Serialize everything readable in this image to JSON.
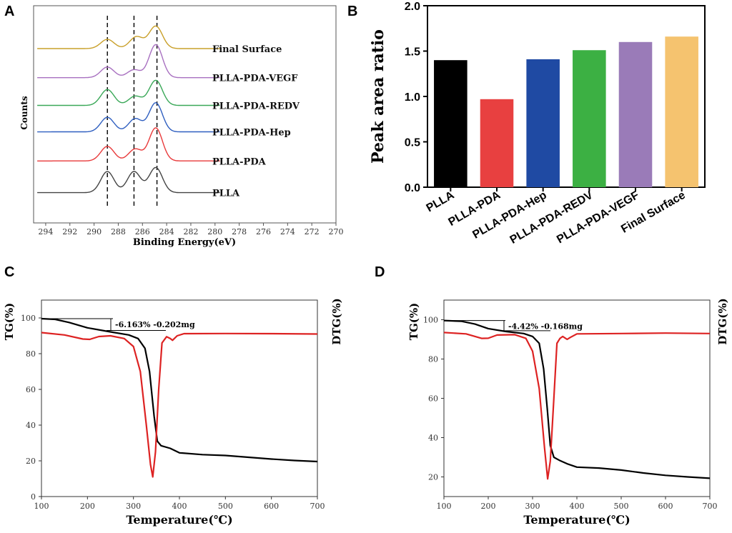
{
  "chart_data": [
    {
      "panel": "A",
      "type": "line",
      "xlabel": "Binding Energy(eV)",
      "ylabel": "Counts",
      "xlim": [
        295,
        270
      ],
      "xticks": [
        294,
        292,
        290,
        288,
        286,
        284,
        282,
        280,
        278,
        276,
        274,
        272,
        270
      ],
      "reference_lines": [
        288.9,
        286.7,
        284.8
      ],
      "series": [
        {
          "name": "Final Surface",
          "color": "#c9a02a",
          "offset": 6.0,
          "peaks": [
            [
              288.9,
              0.35
            ],
            [
              286.5,
              0.45
            ],
            [
              284.9,
              0.85
            ]
          ]
        },
        {
          "name": "PLLA-PDA-VEGF",
          "color": "#a870c0",
          "offset": 4.9,
          "peaks": [
            [
              288.9,
              0.4
            ],
            [
              286.7,
              0.3
            ],
            [
              284.9,
              1.25
            ]
          ]
        },
        {
          "name": "PLLA-PDA-REDV",
          "color": "#3aa858",
          "offset": 3.85,
          "peaks": [
            [
              288.9,
              0.6
            ],
            [
              286.6,
              0.35
            ],
            [
              284.9,
              0.95
            ]
          ]
        },
        {
          "name": "PLLA-PDA-Hep",
          "color": "#2f5fc0",
          "offset": 2.85,
          "peaks": [
            [
              288.9,
              0.55
            ],
            [
              286.6,
              0.5
            ],
            [
              284.9,
              1.1
            ]
          ]
        },
        {
          "name": "PLLA-PDA",
          "color": "#e8393a",
          "offset": 1.75,
          "peaks": [
            [
              288.9,
              0.55
            ],
            [
              286.6,
              0.45
            ],
            [
              284.9,
              1.25
            ]
          ]
        },
        {
          "name": "PLLA",
          "color": "#444444",
          "offset": 0.55,
          "peaks": [
            [
              288.9,
              0.8
            ],
            [
              286.7,
              0.8
            ],
            [
              284.9,
              0.95
            ]
          ]
        }
      ]
    },
    {
      "panel": "B",
      "type": "bar",
      "ylabel": "Peak area ratio",
      "ylim": [
        0.0,
        2.0
      ],
      "yticks": [
        "0.0",
        "0.5",
        "1.0",
        "1.5",
        "2.0"
      ],
      "categories": [
        "PLLA",
        "PLLA-PDA",
        "PLLA-PDA-Hep",
        "PLLA-PDA-REDV",
        "PLLA-PDA-VEGF",
        "Final Surface"
      ],
      "values": [
        1.4,
        0.97,
        1.41,
        1.51,
        1.6,
        1.66
      ],
      "colors": [
        "#000000",
        "#e84040",
        "#1f4aa3",
        "#3cb043",
        "#9a7bb8",
        "#f5c36f"
      ]
    },
    {
      "panel": "C",
      "type": "line",
      "xlabel": "Temperature(℃)",
      "ylabel": "TG(%)",
      "y2label": "DTG(%)",
      "xlim": [
        100,
        700
      ],
      "ylim": [
        0,
        110
      ],
      "xticks": [
        100,
        200,
        300,
        400,
        500,
        600,
        700
      ],
      "yticks": [
        0,
        20,
        40,
        60,
        80,
        100
      ],
      "annotation": "-6.163% -0.202mg",
      "series": [
        {
          "name": "TG",
          "color": "#000000",
          "points": [
            [
              100,
              99.6
            ],
            [
              130,
              99.2
            ],
            [
              160,
              97.5
            ],
            [
              200,
              94.5
            ],
            [
              250,
              92.2
            ],
            [
              290,
              90.5
            ],
            [
              310,
              88.5
            ],
            [
              325,
              83
            ],
            [
              335,
              70
            ],
            [
              345,
              45
            ],
            [
              352,
              31
            ],
            [
              360,
              28.5
            ],
            [
              380,
              27
            ],
            [
              400,
              24.5
            ],
            [
              450,
              23.5
            ],
            [
              500,
              23
            ],
            [
              550,
              22
            ],
            [
              600,
              21
            ],
            [
              650,
              20.2
            ],
            [
              700,
              19.6
            ]
          ]
        },
        {
          "name": "DTG",
          "color": "#dd2222",
          "points": [
            [
              100,
              91.8
            ],
            [
              150,
              90.5
            ],
            [
              190,
              88.2
            ],
            [
              205,
              88.0
            ],
            [
              225,
              89.6
            ],
            [
              250,
              90
            ],
            [
              280,
              88.5
            ],
            [
              300,
              84
            ],
            [
              315,
              70
            ],
            [
              328,
              40
            ],
            [
              337,
              18
            ],
            [
              342,
              11
            ],
            [
              348,
              25
            ],
            [
              355,
              60
            ],
            [
              362,
              86
            ],
            [
              372,
              89.5
            ],
            [
              380,
              88.5
            ],
            [
              385,
              87.5
            ],
            [
              395,
              90
            ],
            [
              410,
              91.2
            ],
            [
              500,
              91.3
            ],
            [
              600,
              91.2
            ],
            [
              700,
              91.0
            ]
          ]
        }
      ]
    },
    {
      "panel": "D",
      "type": "line",
      "xlabel": "Temperature(℃)",
      "ylabel": "TG(%)",
      "y2label": "DTG(%)",
      "xlim": [
        100,
        700
      ],
      "ylim": [
        10,
        110
      ],
      "xticks": [
        100,
        200,
        300,
        400,
        500,
        600,
        700
      ],
      "yticks": [
        20,
        40,
        60,
        80,
        100
      ],
      "annotation": "-4.42% -0.168mg",
      "series": [
        {
          "name": "TG",
          "color": "#000000",
          "points": [
            [
              100,
              99.6
            ],
            [
              140,
              99.2
            ],
            [
              170,
              97.8
            ],
            [
              200,
              95.5
            ],
            [
              240,
              94
            ],
            [
              280,
              93
            ],
            [
              300,
              91.5
            ],
            [
              315,
              88
            ],
            [
              325,
              75
            ],
            [
              333,
              55
            ],
            [
              340,
              36
            ],
            [
              348,
              30
            ],
            [
              360,
              28.5
            ],
            [
              380,
              26.5
            ],
            [
              400,
              25
            ],
            [
              450,
              24.5
            ],
            [
              500,
              23.5
            ],
            [
              550,
              22
            ],
            [
              600,
              20.8
            ],
            [
              650,
              20
            ],
            [
              700,
              19.3
            ]
          ]
        },
        {
          "name": "DTG",
          "color": "#dd2222",
          "points": [
            [
              100,
              93.5
            ],
            [
              150,
              92.8
            ],
            [
              185,
              90.5
            ],
            [
              200,
              90.6
            ],
            [
              220,
              92.2
            ],
            [
              260,
              92.4
            ],
            [
              285,
              90.5
            ],
            [
              300,
              84
            ],
            [
              315,
              65
            ],
            [
              327,
              35
            ],
            [
              334,
              19
            ],
            [
              340,
              28
            ],
            [
              348,
              60
            ],
            [
              355,
              88
            ],
            [
              362,
              90.5
            ],
            [
              368,
              91.5
            ],
            [
              378,
              90
            ],
            [
              385,
              91
            ],
            [
              400,
              92.8
            ],
            [
              500,
              93
            ],
            [
              600,
              93.2
            ],
            [
              700,
              93.0
            ]
          ]
        }
      ]
    }
  ]
}
